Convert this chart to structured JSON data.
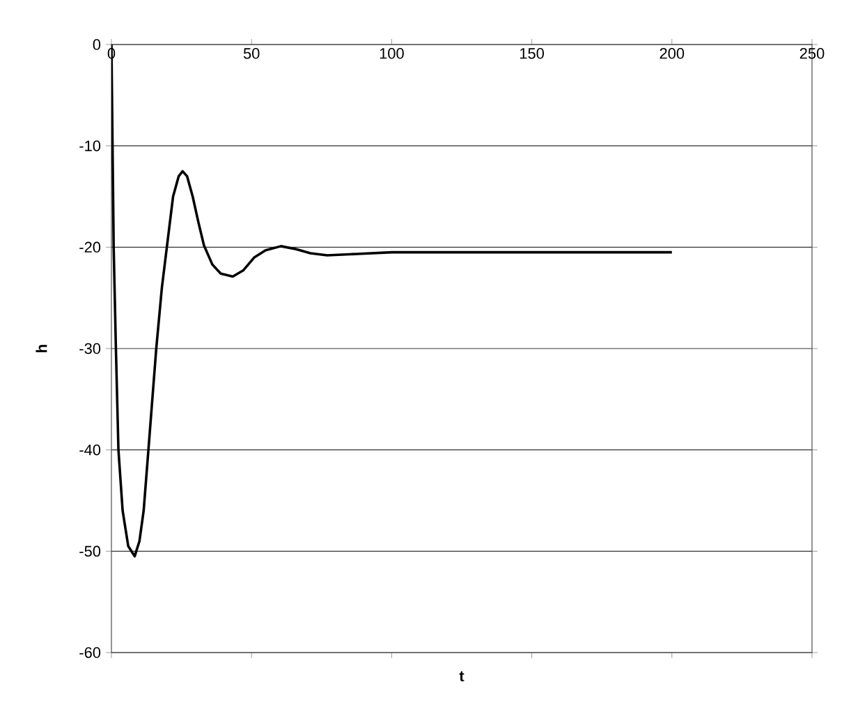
{
  "chart_data": {
    "type": "line",
    "xlabel": "t",
    "ylabel": "h",
    "xlim": [
      0,
      250
    ],
    "xticks": [
      0,
      50,
      100,
      150,
      200,
      250
    ],
    "ylim": [
      -60,
      0
    ],
    "yticks": [
      -60,
      -50,
      -40,
      -30,
      -20,
      -10,
      0
    ],
    "grid": "y",
    "marker": "none",
    "line_style": "solid",
    "series": [
      {
        "color": "#000000",
        "x": [
          0,
          0.8,
          1.6,
          2.5,
          4,
          6,
          8.3,
          10,
          11.5,
          13.2,
          16,
          18,
          20,
          22,
          24,
          25.4,
          27,
          29,
          31,
          33,
          36,
          39,
          43.3,
          47,
          51,
          55,
          60.5,
          66,
          71,
          77,
          85,
          100,
          150,
          200
        ],
        "values": [
          0,
          -20,
          -30,
          -40,
          -46,
          -49.5,
          -50.5,
          -49,
          -46,
          -40,
          -30,
          -24,
          -19.5,
          -15,
          -13,
          -12.5,
          -13,
          -15,
          -17.5,
          -19.8,
          -21.7,
          -22.6,
          -22.9,
          -22.3,
          -21,
          -20.3,
          -19.9,
          -20.2,
          -20.6,
          -20.8,
          -20.7,
          -20.5,
          -20.5,
          -20.5
        ]
      }
    ]
  }
}
